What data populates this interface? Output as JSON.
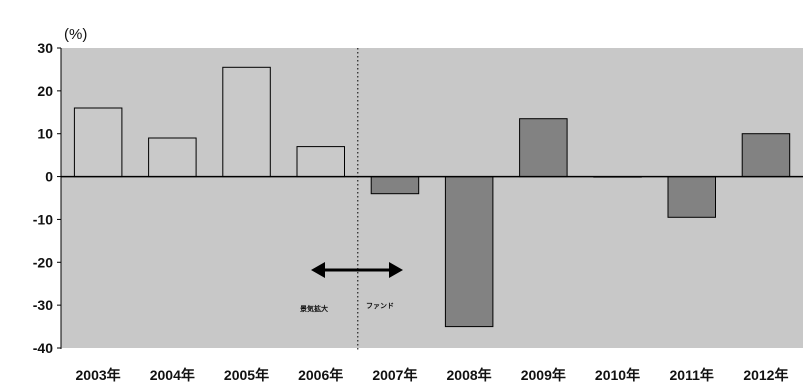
{
  "chart_data": {
    "type": "bar",
    "unit_label": "(%)",
    "categories": [
      "2003年",
      "2004年",
      "2005年",
      "2006年",
      "2007年",
      "2008年",
      "2009年",
      "2010年",
      "2011年",
      "2012年"
    ],
    "values": [
      16,
      9,
      25.5,
      7,
      -4,
      -35,
      13.5,
      0,
      -9.5,
      10
    ],
    "ylim": [
      -40,
      30
    ],
    "yticks": [
      30,
      20,
      10,
      0,
      -10,
      -20,
      -30,
      -40
    ],
    "ytick_labels": [
      "30",
      "20",
      "10",
      "0",
      "-10",
      "-20",
      "-30",
      "-40"
    ],
    "grid": false,
    "plot_background": "#c8c8c8",
    "bar_colors": [
      "#c9c9c9",
      "#c9c9c9",
      "#c9c9c9",
      "#c9c9c9",
      "#828282",
      "#828282",
      "#828282",
      "#828282",
      "#828282",
      "#828282"
    ],
    "annotations": {
      "divider_between": [
        "2006年",
        "2007年"
      ],
      "divider_style": "dotted",
      "arrow_left_label": "景気拡大",
      "arrow_right_label": "ファンド"
    }
  }
}
